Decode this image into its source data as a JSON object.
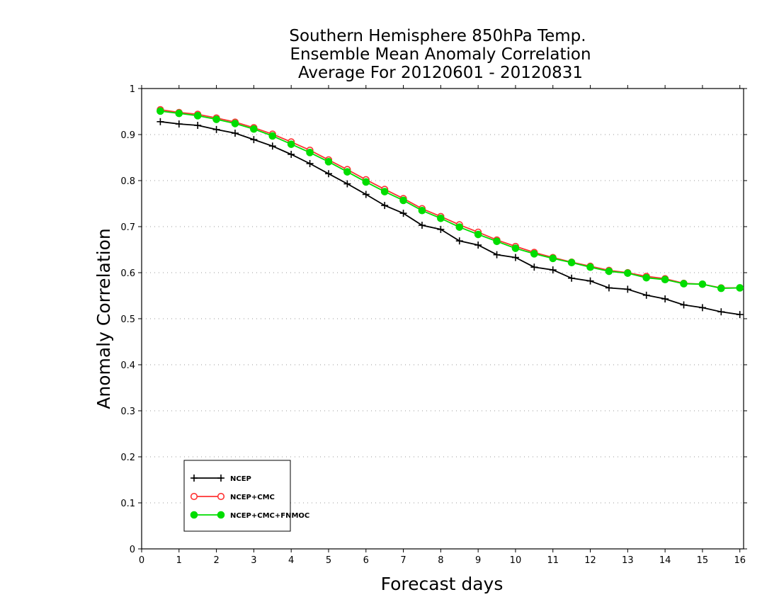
{
  "chart_data": {
    "type": "line",
    "title": [
      "Southern Hemisphere 850hPa Temp.",
      "Ensemble Mean Anomaly Correlation",
      "Average For 20120601 - 20120831"
    ],
    "xlabel": "Forecast days",
    "ylabel": "Anomaly Correlation",
    "xlim": [
      0,
      16.1
    ],
    "ylim": [
      0,
      1
    ],
    "xticks": [
      0,
      1,
      2,
      3,
      4,
      5,
      6,
      7,
      8,
      9,
      10,
      11,
      12,
      13,
      14,
      15,
      16
    ],
    "yticks": [
      0,
      0.1,
      0.2,
      0.3,
      0.4,
      0.5,
      0.6,
      0.7,
      0.8,
      0.9,
      1
    ],
    "ytick_labels": [
      "0",
      "0.1",
      "0.2",
      "0.3",
      "0.4",
      "0.5",
      "0.6",
      "0.7",
      "0.8",
      "0.9",
      "1"
    ],
    "grid": "horizontal-dotted",
    "legend_position": "bottom-left",
    "x": [
      0.5,
      1,
      1.5,
      2,
      2.5,
      3,
      3.5,
      4,
      4.5,
      5,
      5.5,
      6,
      6.5,
      7,
      7.5,
      8,
      8.5,
      9,
      9.5,
      10,
      10.5,
      11,
      11.5,
      12,
      12.5,
      13,
      13.5,
      14,
      14.5,
      15,
      15.5,
      16
    ],
    "series": [
      {
        "name": "NCEP",
        "color": "#000000",
        "marker": "plus",
        "values": [
          0.928,
          0.923,
          0.92,
          0.911,
          0.903,
          0.889,
          0.875,
          0.857,
          0.837,
          0.815,
          0.793,
          0.77,
          0.746,
          0.729,
          0.703,
          0.694,
          0.669,
          0.66,
          0.639,
          0.633,
          0.612,
          0.606,
          0.588,
          0.582,
          0.567,
          0.564,
          0.551,
          0.543,
          0.53,
          0.524,
          0.515,
          0.509
        ]
      },
      {
        "name": "NCEP+CMC",
        "color": "#ff3333",
        "marker": "open-circle",
        "values": [
          0.954,
          0.948,
          0.944,
          0.936,
          0.927,
          0.915,
          0.901,
          0.884,
          0.866,
          0.845,
          0.824,
          0.802,
          0.781,
          0.761,
          0.739,
          0.722,
          0.704,
          0.688,
          0.671,
          0.657,
          0.644,
          0.633,
          0.623,
          0.614,
          0.605,
          0.6,
          0.592,
          0.587,
          0.577,
          0.575,
          0.567,
          0.567
        ]
      },
      {
        "name": "NCEP+CMC+FNMOC",
        "color": "#00dd00",
        "marker": "filled-circle",
        "values": [
          0.951,
          0.946,
          0.941,
          0.933,
          0.924,
          0.912,
          0.897,
          0.879,
          0.861,
          0.841,
          0.819,
          0.797,
          0.776,
          0.757,
          0.735,
          0.718,
          0.699,
          0.683,
          0.668,
          0.653,
          0.641,
          0.631,
          0.622,
          0.612,
          0.603,
          0.599,
          0.589,
          0.585,
          0.576,
          0.575,
          0.566,
          0.567
        ]
      }
    ]
  }
}
